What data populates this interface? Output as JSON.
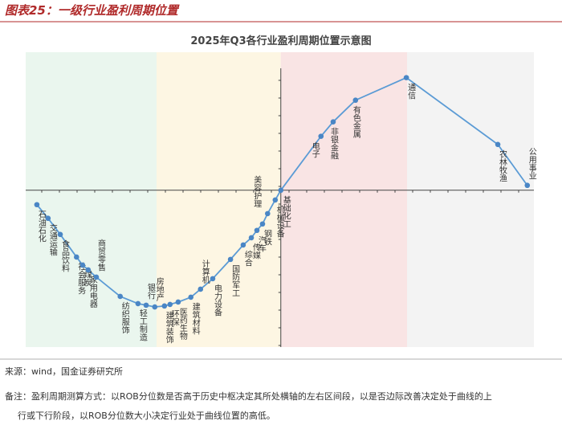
{
  "header": {
    "title": "图表25：一级行业盈利周期位置"
  },
  "chart_data": {
    "type": "line",
    "title": "2025年Q3各行业盈利周期位置示意图",
    "categories": [
      "石油石化",
      "交通运输",
      "食品饮料",
      "社会服务",
      "煤炭",
      "家用电器",
      "商贸零售",
      "纺织服饰",
      "轻工制造",
      "银行",
      "房地产",
      "建筑装饰",
      "环保",
      "医药生物",
      "建筑材料",
      "计算机",
      "电力设备",
      "国防军工",
      "综合",
      "传媒",
      "汽车",
      "钢铁",
      "美容护理",
      "机械设备",
      "基础化工",
      "电子",
      "非银金融",
      "有色金属",
      "通信",
      "农林牧渔",
      "公用事业"
    ],
    "x": [
      2.2,
      4.4,
      6.8,
      10.0,
      11.2,
      12.3,
      13.9,
      18.6,
      22.1,
      23.7,
      25.4,
      27.3,
      28.4,
      30.0,
      32.5,
      34.4,
      36.8,
      40.3,
      42.8,
      44.4,
      45.5,
      46.6,
      47.6,
      49.1,
      50.2,
      58.1,
      60.5,
      64.9,
      74.9,
      92.9,
      98.7
    ],
    "values": [
      -9.2,
      -17.9,
      -28.2,
      -42.6,
      -47.7,
      -50.8,
      -55.4,
      -67.7,
      -72.3,
      -73.3,
      -74.4,
      -73.8,
      -72.8,
      -71.3,
      -68.2,
      -63.1,
      -56.4,
      -44.1,
      -34.9,
      -30.3,
      -25.6,
      -21.5,
      -14.9,
      -6.2,
      0,
      34.4,
      43.6,
      57.4,
      71.8,
      29.2,
      3.1
    ],
    "color": "#5b9bd5",
    "xlim": [
      0,
      100
    ],
    "ylim": [
      -100,
      88
    ]
  },
  "footer": {
    "source": "来源：wind，国金证券研究所",
    "note": [
      "备注：盈利周期测算方式：以ROB分位数是否高于历史中枢决定其所处横轴的左右区间段，以是否边际改善决定处于曲线的上",
      "行或下行阶段，以ROB分位数大小决定行业处于曲线位置的高低。"
    ]
  }
}
